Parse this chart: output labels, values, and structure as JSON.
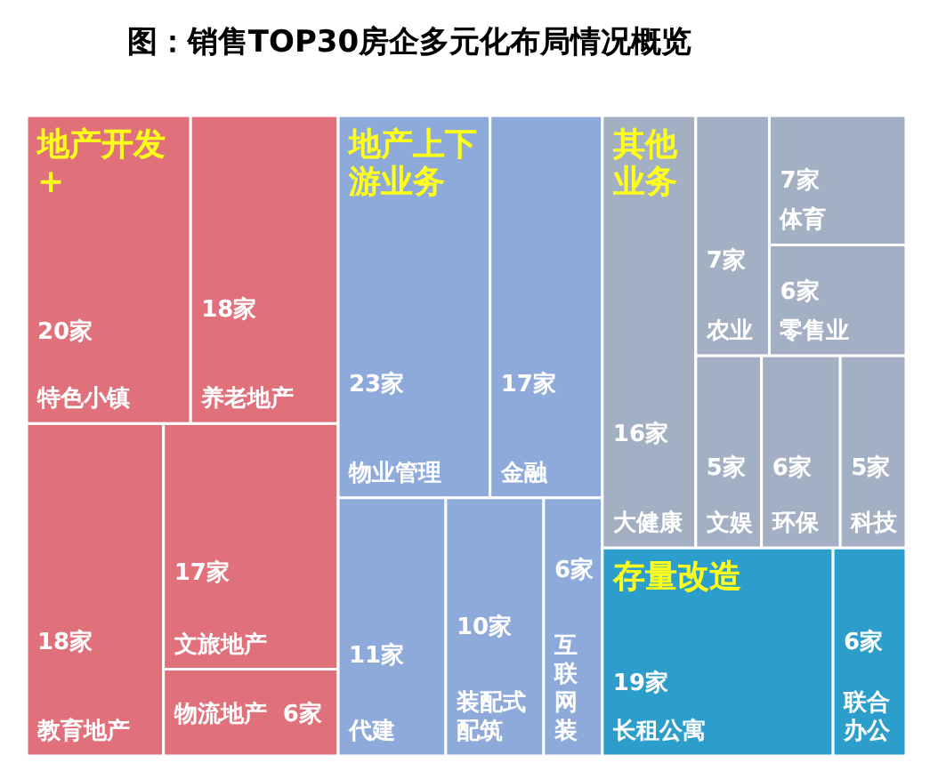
{
  "chart_data": {
    "type": "other",
    "title": "图：销售TOP30房企多元化布局情况概览",
    "categories": [
      "特色小镇",
      "养老地产",
      "教育地产",
      "文旅地产",
      "物流地产",
      "物业管理",
      "金融",
      "代建",
      "装配式配筑",
      "互联网装",
      "大健康",
      "农业",
      "体育",
      "零售业",
      "文娱",
      "环保",
      "科技",
      "长租公寓",
      "联合办公"
    ],
    "series": [
      {
        "name": "地产开发+",
        "color": "#e0707a",
        "values": [
          20,
          18,
          18,
          17,
          6,
          null,
          null,
          null,
          null,
          null,
          null,
          null,
          null,
          null,
          null,
          null,
          null,
          null,
          null
        ],
        "value_labels": [
          "20家",
          "18家",
          "18家",
          "17家",
          "6家",
          null,
          null,
          null,
          null,
          null,
          null,
          null,
          null,
          null,
          null,
          null,
          null,
          null,
          null
        ]
      },
      {
        "name": "地产上下游业务",
        "color": "#8eaadb",
        "values": [
          null,
          null,
          null,
          null,
          null,
          23,
          17,
          11,
          10,
          6,
          null,
          null,
          null,
          null,
          null,
          null,
          null,
          null,
          null
        ],
        "value_labels": [
          null,
          null,
          null,
          null,
          null,
          "23家",
          "17家",
          "11家",
          "10家",
          "6家",
          null,
          null,
          null,
          null,
          null,
          null,
          null,
          null,
          null
        ]
      },
      {
        "name": "其他业务",
        "color": "#a3b0c4",
        "values": [
          null,
          null,
          null,
          null,
          null,
          null,
          null,
          null,
          null,
          null,
          16,
          7,
          7,
          6,
          5,
          6,
          5,
          null,
          null
        ],
        "value_labels": [
          null,
          null,
          null,
          null,
          null,
          null,
          null,
          null,
          null,
          null,
          "16家",
          "7家",
          "7家",
          "6家",
          "5家",
          "6家",
          "5家",
          null,
          null
        ]
      },
      {
        "name": "存量改造",
        "color": "#2b9ecb",
        "values": [
          null,
          null,
          null,
          null,
          null,
          null,
          null,
          null,
          null,
          null,
          null,
          null,
          null,
          null,
          null,
          null,
          null,
          19,
          6
        ],
        "value_labels": [
          null,
          null,
          null,
          null,
          null,
          null,
          null,
          null,
          null,
          null,
          null,
          null,
          null,
          null,
          null,
          null,
          null,
          "19家",
          "6家"
        ]
      }
    ]
  }
}
